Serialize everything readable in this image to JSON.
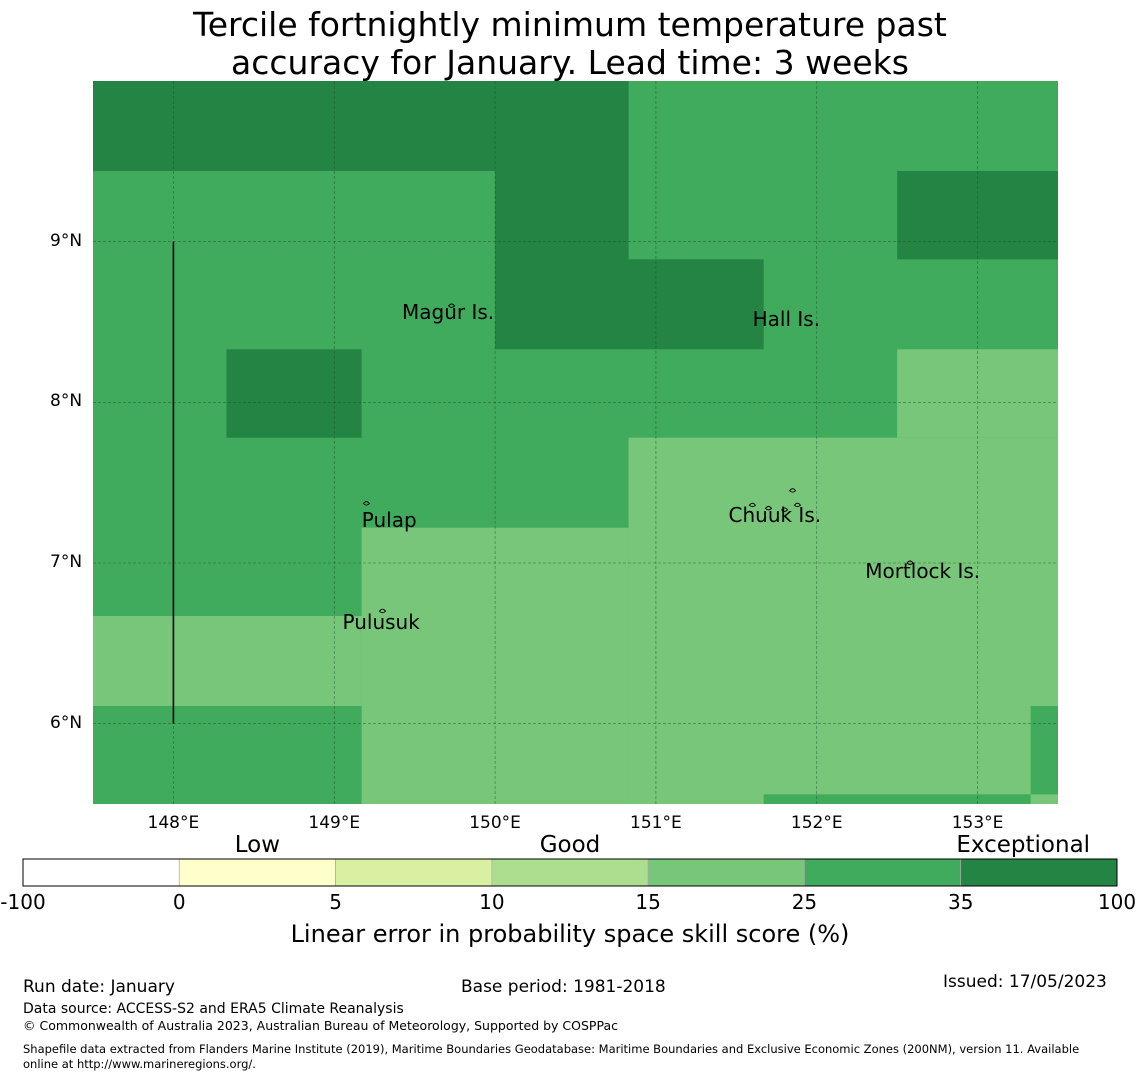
{
  "title": {
    "line1": "Tercile fortnightly minimum temperature past",
    "line2": "accuracy for January. Lead time: 3 weeks"
  },
  "map": {
    "lon_range": [
      147.5,
      153.5
    ],
    "lat_range": [
      5.5,
      10.0
    ],
    "lat_ticks": [
      {
        "value": 9,
        "label": "9°N"
      },
      {
        "value": 8,
        "label": "8°N"
      },
      {
        "value": 7,
        "label": "7°N"
      },
      {
        "value": 6,
        "label": "6°N"
      }
    ],
    "lon_ticks": [
      {
        "value": 148,
        "label": "148°E"
      },
      {
        "value": 149,
        "label": "149°E"
      },
      {
        "value": 150,
        "label": "150°E"
      },
      {
        "value": 151,
        "label": "151°E"
      },
      {
        "value": 152,
        "label": "152°E"
      },
      {
        "value": 153,
        "label": "153°E"
      }
    ],
    "places": [
      {
        "name": "Magur Is.",
        "lon": 149.67,
        "lat": 8.56
      },
      {
        "name": "Hall Is.",
        "lon": 151.85,
        "lat": 8.52
      },
      {
        "name": "Pulap",
        "lon": 149.42,
        "lat": 7.27
      },
      {
        "name": "Chuuk Is.",
        "lon": 151.7,
        "lat": 7.3
      },
      {
        "name": "Mortlock Is.",
        "lon": 152.55,
        "lat": 6.95
      },
      {
        "name": "Pulusuk",
        "lon": 149.3,
        "lat": 6.63
      }
    ],
    "colors": {
      "c15_25": "#78c679",
      "c25_35": "#41ab5d",
      "c35_100": "#238443"
    },
    "skill_cells": [
      {
        "lon_min": 147.5,
        "lon_max": 150.0,
        "lat_min": 9.44,
        "lat_max": 10.0,
        "band": "c35_100"
      },
      {
        "lon_min": 150.0,
        "lon_max": 150.83,
        "lat_min": 8.33,
        "lat_max": 10.0,
        "band": "c35_100"
      },
      {
        "lon_min": 150.83,
        "lon_max": 151.67,
        "lat_min": 8.33,
        "lat_max": 8.89,
        "band": "c35_100"
      },
      {
        "lon_min": 152.5,
        "lon_max": 153.5,
        "lat_min": 8.89,
        "lat_max": 9.44,
        "band": "c35_100"
      },
      {
        "lon_min": 148.33,
        "lon_max": 149.17,
        "lat_min": 7.78,
        "lat_max": 8.33,
        "band": "c35_100"
      },
      {
        "lon_min": 150.83,
        "lon_max": 153.5,
        "lat_min": 5.5,
        "lat_max": 7.78,
        "band": "c15_25"
      },
      {
        "lon_min": 152.5,
        "lon_max": 153.5,
        "lat_min": 7.78,
        "lat_max": 8.33,
        "band": "c15_25"
      },
      {
        "lon_min": 149.17,
        "lon_max": 150.83,
        "lat_min": 5.5,
        "lat_max": 7.22,
        "band": "c15_25"
      },
      {
        "lon_min": 147.5,
        "lon_max": 149.17,
        "lat_min": 6.11,
        "lat_max": 6.67,
        "band": "c15_25"
      },
      {
        "lon_min": 147.5,
        "lon_max": 149.17,
        "lat_min": 5.5,
        "lat_max": 6.11,
        "band": "c25_35"
      },
      {
        "lon_min": 153.33,
        "lon_max": 153.5,
        "lat_min": 5.56,
        "lat_max": 6.11,
        "band": "c25_35"
      },
      {
        "lon_min": 151.67,
        "lon_max": 153.33,
        "lat_min": 5.5,
        "lat_max": 5.56,
        "band": "c25_35"
      }
    ],
    "default_band": "c25_35"
  },
  "colorbar": {
    "categories": [
      {
        "label": "Low",
        "value": 0
      },
      {
        "label": "Good",
        "value": 15
      },
      {
        "label": "Exceptional",
        "value": 92
      }
    ],
    "bins": [
      {
        "from": -100,
        "to": 0,
        "color": "#ffffff"
      },
      {
        "from": 0,
        "to": 5,
        "color": "#ffffcc"
      },
      {
        "from": 5,
        "to": 10,
        "color": "#d9f0a3"
      },
      {
        "from": 10,
        "to": 15,
        "color": "#addd8e"
      },
      {
        "from": 15,
        "to": 25,
        "color": "#78c679"
      },
      {
        "from": 25,
        "to": 35,
        "color": "#41ab5d"
      },
      {
        "from": 35,
        "to": 100,
        "color": "#238443"
      }
    ],
    "ticks": [
      "-100",
      "0",
      "5",
      "10",
      "15",
      "25",
      "35",
      "100"
    ],
    "label": "Linear error in probability space skill score (%)"
  },
  "footer": {
    "run_date": "Run date: January",
    "base_period": "Base period: 1981-2018",
    "issued": "Issued: 17/05/2023",
    "data_source": "Data source: ACCESS-S2 and ERA5 Climate Reanalysis",
    "copyright": "© Commonwealth of Australia 2023, Australian Bureau of Meteorology, Supported by COSPPac",
    "shapefile_line1": "Shapefile data extracted from Flanders Marine Institute (2019), Maritime Boundaries Geodatabase: Maritime Boundaries and Exclusive Economic Zones (200NM), version 11. Available",
    "shapefile_line2": "online at http://www.marineregions.org/."
  }
}
